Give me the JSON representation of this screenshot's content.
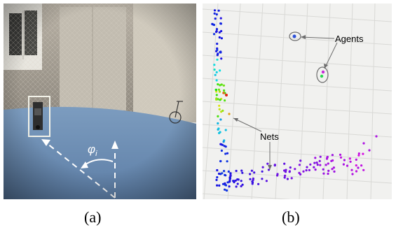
{
  "figure": {
    "panel_a": {
      "label": "(a)",
      "angle_symbol": "φ",
      "angle_subscript": "i"
    },
    "panel_b": {
      "label": "(b)",
      "annotations": {
        "agents": "Agents",
        "nets": "Nets"
      }
    }
  },
  "colors": {
    "floor": "#6f8fb3",
    "wall": "#a59d92",
    "map_bg": "#f1f1ef",
    "grid": "#d9d9d6",
    "annotation_line": "#6d6d6d",
    "dashed_arrow": "#ffffff"
  },
  "icons": [
    "robot-agent-icon",
    "agent-marker-icon"
  ]
}
